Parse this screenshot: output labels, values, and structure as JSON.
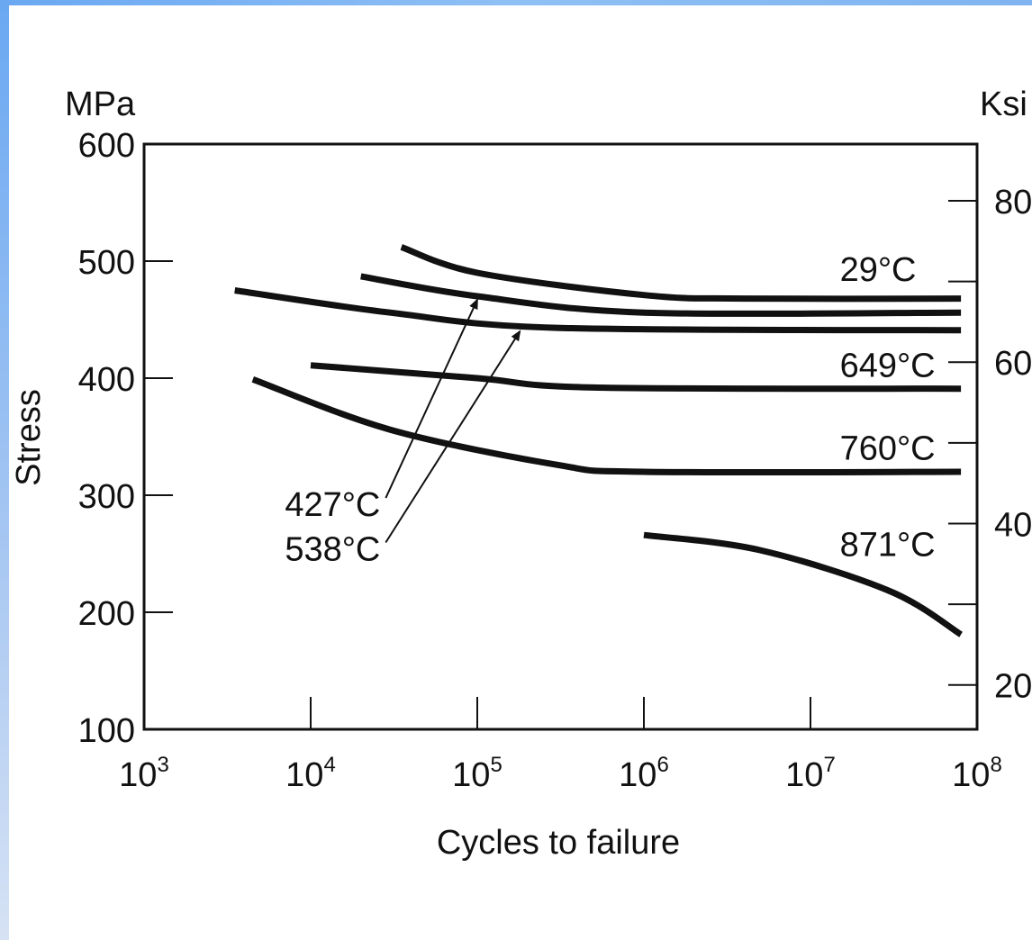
{
  "chart_data": {
    "type": "line",
    "xlabel": "Cycles to failure",
    "ylabel": "Stress",
    "y_unit_left": "MPa",
    "y_unit_right": "Ksi",
    "x_scale": "log",
    "xlim": [
      1000,
      100000000
    ],
    "ylim": [
      100,
      600
    ],
    "x_ticks": [
      {
        "base": "10",
        "exp": "3",
        "value": 1000
      },
      {
        "base": "10",
        "exp": "4",
        "value": 10000
      },
      {
        "base": "10",
        "exp": "5",
        "value": 100000
      },
      {
        "base": "10",
        "exp": "6",
        "value": 1000000
      },
      {
        "base": "10",
        "exp": "7",
        "value": 10000000
      },
      {
        "base": "10",
        "exp": "8",
        "value": 100000000
      }
    ],
    "y_ticks_left": [
      "100",
      "200",
      "300",
      "400",
      "500",
      "600"
    ],
    "y_ticks_right": [
      {
        "label": "20",
        "ksi": 20
      },
      {
        "label": "40",
        "ksi": 40
      },
      {
        "label": "60",
        "ksi": 60
      },
      {
        "label": "80",
        "ksi": 80
      }
    ],
    "y_ticks_right_minor_ksi": [
      30,
      50,
      70
    ],
    "grid": false,
    "series": [
      {
        "name": "29°C",
        "points": [
          [
            35000,
            512
          ],
          [
            100000,
            490
          ],
          [
            1000000,
            471
          ],
          [
            4000000,
            468
          ],
          [
            80000000,
            468
          ]
        ]
      },
      {
        "name": "427°C",
        "points": [
          [
            20000,
            487
          ],
          [
            100000,
            470
          ],
          [
            1000000,
            456
          ],
          [
            80000000,
            456
          ]
        ]
      },
      {
        "name": "538°C",
        "points": [
          [
            3500,
            475
          ],
          [
            30000,
            456
          ],
          [
            300000,
            443
          ],
          [
            80000000,
            441
          ]
        ]
      },
      {
        "name": "649°C",
        "points": [
          [
            10000,
            411
          ],
          [
            100000,
            400
          ],
          [
            500000,
            392
          ],
          [
            80000000,
            391
          ]
        ]
      },
      {
        "name": "760°C",
        "points": [
          [
            4500,
            399
          ],
          [
            30000,
            356
          ],
          [
            300000,
            326
          ],
          [
            1000000,
            320
          ],
          [
            80000000,
            320
          ]
        ]
      },
      {
        "name": "871°C",
        "points": [
          [
            1000000,
            266
          ],
          [
            5000000,
            253
          ],
          [
            30000000,
            218
          ],
          [
            80000000,
            181
          ]
        ]
      }
    ],
    "annotations": [
      {
        "text": "29°C",
        "x": 15000000,
        "y": 494
      },
      {
        "text": "649°C",
        "x": 15000000,
        "y": 412
      },
      {
        "text": "760°C",
        "x": 15000000,
        "y": 341
      },
      {
        "text": "871°C",
        "x": 15000000,
        "y": 259
      },
      {
        "text": "427°C",
        "x": 7000,
        "y": 293,
        "arrow_to": [
          100000,
          470
        ]
      },
      {
        "text": "538°C",
        "x": 7000,
        "y": 255,
        "arrow_to": [
          180000,
          443
        ]
      }
    ]
  }
}
